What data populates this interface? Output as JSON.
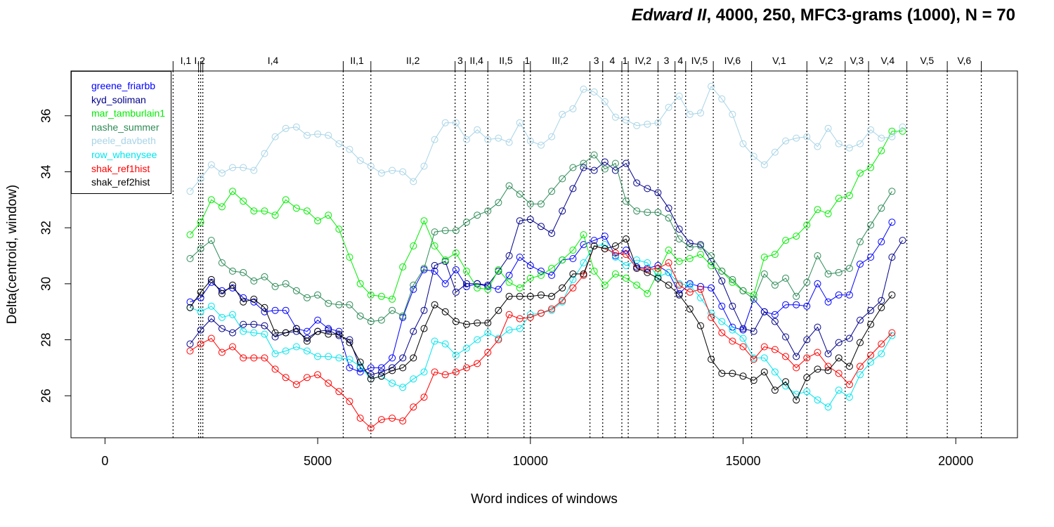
{
  "title": {
    "italic": "Edward II",
    "rest": ", 4000, 250, MFC3-grams (1000), N = 70"
  },
  "chart_data": {
    "type": "line",
    "xlabel": "Word indices of windows",
    "ylabel": "Delta(centroid, window)",
    "xlim": [
      -800,
      21450
    ],
    "ylim": [
      24.5,
      37.6
    ],
    "xticks": [
      0,
      5000,
      10000,
      15000,
      20000
    ],
    "yticks": [
      26,
      28,
      30,
      32,
      34,
      36
    ],
    "grid": false,
    "legend_position": "top-left",
    "x_start": 2000,
    "x_step": 250,
    "scene_markers": [
      {
        "label": "I,1",
        "x": 1600
      },
      {
        "label": "I,2",
        "x": 2200
      },
      {
        "label": "",
        "x": 2250
      },
      {
        "label": "I,4",
        "x": 2300
      },
      {
        "label": "II,1",
        "x": 5600
      },
      {
        "label": "II,2",
        "x": 6250
      },
      {
        "label": "3",
        "x": 8230
      },
      {
        "label": "II,4",
        "x": 8470
      },
      {
        "label": "II,5",
        "x": 9000
      },
      {
        "label": "1",
        "x": 9850
      },
      {
        "label": "III,2",
        "x": 10000
      },
      {
        "label": "3",
        "x": 11400
      },
      {
        "label": "4",
        "x": 11700
      },
      {
        "label": "1",
        "x": 12150
      },
      {
        "label": "IV,2",
        "x": 12300
      },
      {
        "label": "3",
        "x": 13000
      },
      {
        "label": "4",
        "x": 13400
      },
      {
        "label": "IV,5",
        "x": 13650
      },
      {
        "label": "IV,6",
        "x": 14300
      },
      {
        "label": "V,1",
        "x": 15200
      },
      {
        "label": "V,2",
        "x": 16500
      },
      {
        "label": "V,3",
        "x": 17400
      },
      {
        "label": "V,4",
        "x": 17950
      },
      {
        "label": "V,5",
        "x": 18850
      },
      {
        "label": "V,6",
        "x": 19800
      },
      {
        "label": "",
        "x": 20600
      }
    ],
    "series": [
      {
        "name": "greene_friarbb",
        "color": "#0000ff",
        "values": [
          29.35,
          29.5,
          30.05,
          29.75,
          29.85,
          29.5,
          29.35,
          29.0,
          29.05,
          29.05,
          28.4,
          28.3,
          28.7,
          28.4,
          28.3,
          27.0,
          26.85,
          27.0,
          27.0,
          27.35,
          28.8,
          29.8,
          30.5,
          30.45,
          30.0,
          30.5,
          29.9,
          30.0,
          29.9,
          29.8,
          30.3,
          30.95,
          30.65,
          30.45,
          30.3,
          30.85,
          30.9,
          31.4,
          31.55,
          31.7,
          31.0,
          31.2,
          30.6,
          30.55,
          30.65,
          30.4,
          29.65,
          30.0,
          29.9,
          29.85,
          29.2,
          28.45,
          28.35,
          29.45,
          29.0,
          28.9,
          29.25,
          29.25,
          29.2,
          30.0,
          29.35,
          29.6,
          29.6,
          30.7,
          30.95,
          31.5,
          32.2
        ]
      },
      {
        "name": "kyd_soliman",
        "color": "#00008b",
        "values": [
          27.85,
          28.35,
          28.75,
          28.4,
          28.25,
          28.55,
          28.55,
          28.5,
          28.1,
          28.25,
          28.3,
          28.05,
          28.3,
          28.35,
          28.15,
          28.0,
          27.0,
          26.75,
          26.85,
          27.0,
          27.35,
          28.3,
          29.05,
          30.65,
          30.8,
          29.7,
          30.0,
          30.0,
          29.95,
          30.45,
          31.0,
          32.25,
          32.3,
          32.05,
          31.8,
          32.6,
          33.4,
          34.15,
          34.05,
          34.35,
          34.05,
          34.3,
          33.6,
          33.4,
          33.25,
          32.7,
          31.95,
          31.45,
          31.4,
          30.8,
          30.1,
          29.2,
          28.4,
          28.3,
          29.0,
          28.65,
          28.1,
          27.4,
          28.0,
          28.45,
          27.5,
          27.9,
          28.05,
          28.7,
          29.05,
          29.4,
          30.95,
          31.55
        ]
      },
      {
        "name": "mar_tamburlain1",
        "color": "#00ee00",
        "values": [
          31.75,
          32.2,
          33.0,
          32.75,
          33.3,
          32.95,
          32.6,
          32.6,
          32.45,
          33.0,
          32.7,
          32.6,
          32.25,
          32.45,
          31.95,
          30.95,
          30.0,
          29.6,
          29.55,
          29.45,
          30.6,
          31.35,
          32.25,
          31.35,
          30.85,
          31.1,
          30.45,
          29.85,
          29.8,
          30.5,
          30.05,
          29.85,
          30.2,
          30.3,
          30.55,
          30.85,
          31.2,
          31.75,
          30.45,
          29.95,
          30.35,
          30.2,
          29.95,
          29.65,
          30.4,
          31.2,
          30.8,
          30.9,
          31.05,
          30.65,
          30.45,
          30.05,
          29.75,
          29.6,
          30.95,
          31.05,
          31.55,
          31.7,
          32.1,
          32.65,
          32.5,
          33.05,
          33.15,
          33.95,
          34.15,
          34.75,
          35.45,
          35.45
        ]
      },
      {
        "name": "nashe_summer",
        "color": "#2e8b57",
        "values": [
          30.9,
          31.25,
          31.55,
          30.75,
          30.45,
          30.4,
          30.1,
          30.25,
          29.9,
          30.0,
          29.75,
          29.5,
          29.6,
          29.3,
          29.25,
          29.25,
          28.85,
          28.65,
          28.7,
          29.05,
          28.85,
          29.95,
          30.55,
          31.85,
          31.9,
          31.9,
          32.2,
          32.45,
          32.6,
          32.9,
          33.5,
          33.2,
          32.85,
          32.85,
          33.3,
          33.75,
          34.15,
          34.3,
          34.6,
          34.1,
          34.3,
          32.95,
          32.6,
          32.55,
          32.55,
          32.35,
          31.6,
          31.3,
          31.35,
          31.0,
          30.45,
          30.15,
          29.75,
          29.45,
          30.35,
          29.95,
          30.2,
          29.55,
          30.05,
          31.0,
          30.35,
          30.4,
          30.55,
          31.5,
          32.1,
          32.7,
          33.3
        ]
      },
      {
        "name": "peele_davbeth",
        "color": "#a8d4e6",
        "values": [
          33.3,
          33.75,
          34.25,
          33.95,
          34.15,
          34.15,
          34.05,
          34.65,
          35.25,
          35.55,
          35.6,
          35.3,
          35.35,
          35.3,
          35.0,
          34.8,
          34.4,
          34.2,
          33.95,
          34.05,
          34.0,
          33.65,
          34.2,
          35.15,
          35.75,
          35.75,
          35.15,
          35.5,
          35.15,
          35.2,
          35.05,
          35.75,
          35.1,
          34.95,
          35.25,
          36.05,
          36.25,
          36.95,
          36.85,
          36.5,
          35.95,
          35.85,
          35.65,
          35.7,
          35.75,
          36.3,
          36.7,
          36.05,
          36.1,
          37.05,
          36.6,
          36.05,
          35.0,
          34.55,
          34.25,
          34.7,
          35.1,
          35.2,
          35.25,
          34.9,
          35.55,
          35.0,
          34.85,
          35.0,
          35.5,
          35.2,
          35.25,
          35.6
        ]
      },
      {
        "name": "row_whenysee",
        "color": "#00e5ee",
        "values": [
          29.15,
          29.0,
          29.2,
          28.8,
          28.9,
          28.3,
          28.25,
          28.2,
          27.5,
          27.6,
          27.75,
          27.6,
          27.4,
          27.4,
          27.35,
          27.3,
          27.05,
          26.6,
          26.7,
          26.45,
          26.3,
          26.6,
          26.85,
          27.95,
          27.85,
          27.45,
          27.7,
          28.0,
          28.25,
          28.05,
          28.35,
          28.4,
          28.9,
          28.95,
          29.05,
          29.35,
          30.15,
          30.75,
          31.35,
          31.4,
          30.95,
          30.65,
          30.85,
          30.75,
          30.25,
          30.4,
          30.0,
          29.95,
          29.5,
          28.95,
          28.65,
          28.35,
          28.05,
          27.35,
          27.35,
          26.85,
          26.35,
          26.05,
          26.15,
          25.85,
          25.6,
          26.2,
          25.95,
          26.75,
          27.2,
          27.5,
          28.15
        ]
      },
      {
        "name": "shak_ref1hist",
        "color": "#ff0000",
        "values": [
          27.6,
          27.85,
          28.05,
          27.55,
          27.75,
          27.35,
          27.35,
          27.35,
          26.95,
          26.65,
          26.4,
          26.65,
          26.75,
          26.45,
          26.15,
          25.8,
          25.2,
          24.85,
          25.15,
          25.2,
          25.1,
          25.6,
          25.95,
          26.85,
          26.75,
          26.85,
          27.0,
          27.15,
          27.55,
          28.0,
          28.9,
          28.75,
          28.8,
          28.95,
          29.1,
          29.4,
          29.85,
          30.3,
          31.35,
          31.25,
          31.1,
          31.05,
          30.55,
          30.5,
          30.55,
          30.75,
          29.95,
          29.7,
          29.8,
          28.8,
          28.25,
          27.95,
          27.75,
          27.3,
          27.75,
          27.65,
          27.4,
          27.0,
          27.35,
          27.55,
          27.05,
          26.8,
          26.4,
          27.05,
          27.45,
          27.85,
          28.25
        ]
      },
      {
        "name": "shak_ref2hist",
        "color": "#000000",
        "values": [
          29.15,
          29.7,
          30.15,
          29.65,
          29.95,
          29.35,
          29.45,
          29.15,
          28.25,
          28.25,
          28.4,
          27.95,
          28.3,
          28.2,
          28.2,
          27.9,
          27.2,
          26.6,
          26.7,
          26.9,
          27.0,
          27.35,
          28.4,
          29.25,
          29.0,
          28.65,
          28.55,
          28.6,
          28.6,
          29.05,
          29.55,
          29.55,
          29.55,
          29.6,
          29.55,
          29.85,
          30.35,
          30.35,
          31.35,
          31.25,
          31.35,
          31.6,
          30.55,
          30.4,
          30.2,
          29.95,
          29.6,
          29.1,
          28.5,
          27.3,
          26.8,
          26.8,
          26.7,
          26.55,
          26.85,
          26.2,
          26.5,
          25.85,
          26.65,
          26.95,
          26.9,
          27.35,
          27.05,
          27.9,
          28.55,
          29.15,
          29.6
        ]
      }
    ]
  }
}
